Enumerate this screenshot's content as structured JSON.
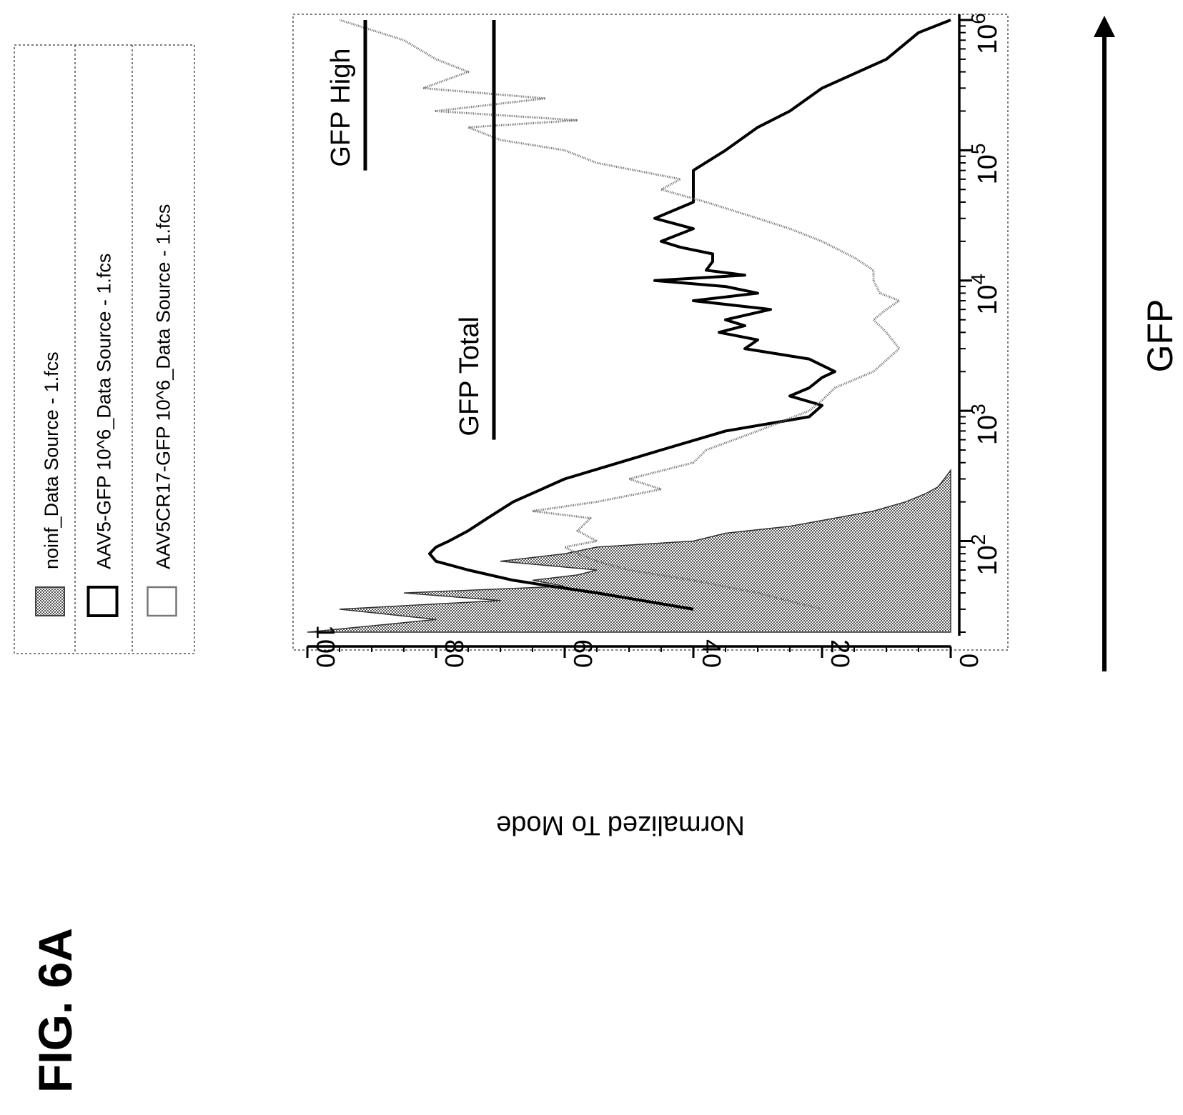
{
  "figure": {
    "label": "FIG. 6A"
  },
  "chart_data": {
    "type": "line",
    "title": "",
    "xlabel": "GFP",
    "ylabel": "Normalized To Mode",
    "x_scale": "log",
    "xlim": [
      20,
      1000000
    ],
    "ylim": [
      0,
      100
    ],
    "x_ticks": [
      {
        "value": 100,
        "base": "10",
        "exp": "2"
      },
      {
        "value": 1000,
        "base": "10",
        "exp": "3"
      },
      {
        "value": 10000,
        "base": "10",
        "exp": "4"
      },
      {
        "value": 100000,
        "base": "10",
        "exp": "5"
      },
      {
        "value": 1000000,
        "base": "10",
        "exp": "6"
      }
    ],
    "y_ticks": [
      "0",
      "20",
      "40",
      "60",
      "80",
      "100"
    ],
    "legend_position": "top",
    "legend": [
      {
        "label": "noinf_Data Source - 1.fcs",
        "swatch": "hatched"
      },
      {
        "label": "AAV5-GFP 10^6_Data Source - 1.fcs",
        "swatch": "bold-outline"
      },
      {
        "label": "AAV5CR17-GFP 10^6_Data Source - 1.fcs",
        "swatch": "thin-outline"
      }
    ],
    "annotations": [
      {
        "label": "GFP High",
        "x_start": 70000,
        "x_end": 1000000,
        "y": 91
      },
      {
        "label": "GFP Total",
        "x_start": 600,
        "x_end": 1000000,
        "y": 71
      }
    ],
    "series": [
      {
        "name": "noinf_Data Source - 1.fcs",
        "style": "filled",
        "x": [
          20,
          25,
          30,
          35,
          40,
          45,
          50,
          55,
          60,
          70,
          80,
          90,
          100,
          115,
          130,
          150,
          170,
          200,
          230,
          260,
          300,
          350
        ],
        "y": [
          100,
          80,
          95,
          70,
          85,
          60,
          65,
          58,
          55,
          70,
          60,
          55,
          40,
          35,
          25,
          18,
          12,
          7,
          4,
          2,
          1,
          0
        ]
      },
      {
        "name": "AAV5-GFP 10^6_Data Source - 1.fcs",
        "style": "bold",
        "x": [
          30,
          35,
          40,
          45,
          50,
          60,
          70,
          80,
          90,
          100,
          120,
          150,
          200,
          300,
          500,
          700,
          900,
          1100,
          1300,
          1500,
          1800,
          2000,
          2500,
          3000,
          3500,
          4000,
          4500,
          5000,
          6000,
          7000,
          8000,
          9000,
          10000,
          11000,
          12000,
          14000,
          16000,
          18000,
          20000,
          25000,
          30000,
          40000,
          50000,
          70000,
          100000,
          150000,
          200000,
          300000,
          500000,
          800000,
          1000000
        ],
        "y": [
          40,
          48,
          55,
          62,
          68,
          75,
          80,
          81,
          80,
          78,
          75,
          72,
          68,
          60,
          45,
          35,
          22,
          20,
          25,
          22,
          20,
          18,
          22,
          32,
          30,
          36,
          32,
          35,
          28,
          40,
          30,
          35,
          46,
          32,
          38,
          37,
          37,
          42,
          45,
          40,
          46,
          40,
          40,
          40,
          35,
          30,
          25,
          20,
          10,
          5,
          0
        ]
      },
      {
        "name": "AAV5CR17-GFP 10^6_Data Source - 1.fcs",
        "style": "thin",
        "x": [
          30,
          40,
          50,
          60,
          70,
          80,
          90,
          100,
          120,
          150,
          170,
          200,
          250,
          300,
          400,
          500,
          700,
          1000,
          1200,
          1500,
          2000,
          3000,
          4000,
          5000,
          6000,
          7000,
          8000,
          10000,
          12000,
          15000,
          20000,
          25000,
          30000,
          40000,
          50000,
          60000,
          80000,
          100000,
          120000,
          150000,
          170000,
          200000,
          250000,
          300000,
          400000,
          500000,
          700000,
          900000,
          1000000
        ],
        "y": [
          20,
          30,
          40,
          50,
          55,
          58,
          60,
          55,
          58,
          56,
          65,
          55,
          45,
          50,
          40,
          38,
          30,
          22,
          20,
          18,
          12,
          8,
          10,
          12,
          10,
          8,
          11,
          12,
          12,
          15,
          20,
          25,
          30,
          38,
          45,
          42,
          55,
          60,
          70,
          75,
          58,
          80,
          63,
          82,
          75,
          80,
          85,
          92,
          95
        ]
      }
    ]
  }
}
